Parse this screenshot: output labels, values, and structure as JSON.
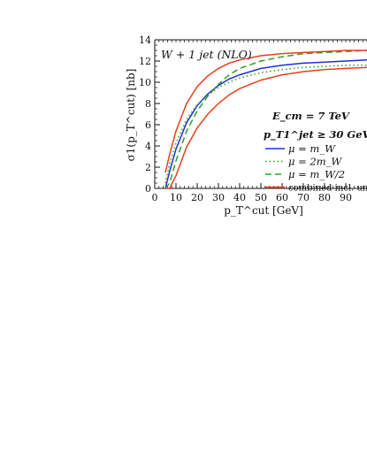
{
  "chart_data": {
    "type": "line",
    "title": "W + 1 jet (NLO)",
    "xlabel": "p_T^cut [GeV]",
    "ylabel": "σ1(p_T^cut) [nb]",
    "xlim": [
      0,
      100
    ],
    "ylim": [
      0,
      14
    ],
    "x_ticks": [
      0,
      10,
      20,
      30,
      40,
      50,
      60,
      70,
      80,
      90
    ],
    "y_ticks": [
      0,
      2,
      4,
      6,
      8,
      10,
      12,
      14
    ],
    "grid": false,
    "legend_position": "right",
    "annotations": [
      "E_cm = 7 TeV",
      "p_T1^jet ≥ 30 GeV"
    ],
    "x": [
      5,
      7,
      10,
      15,
      20,
      25,
      30,
      35,
      40,
      50,
      60,
      70,
      80,
      90,
      100
    ],
    "series": [
      {
        "name": "μ = m_W",
        "color": "#1f2fd8",
        "dash": "solid",
        "values": [
          0.0,
          1.6,
          3.7,
          6.2,
          7.8,
          8.9,
          9.7,
          10.3,
          10.7,
          11.3,
          11.6,
          11.8,
          11.9,
          12.0,
          12.1
        ]
      },
      {
        "name": "μ = 2m_W",
        "color": "#2ca02c",
        "dash": "dotted",
        "values": [
          0.5,
          2.3,
          4.3,
          6.5,
          7.9,
          8.8,
          9.5,
          10.0,
          10.4,
          10.9,
          11.2,
          11.4,
          11.5,
          11.6,
          11.6
        ]
      },
      {
        "name": "μ = m_W/2",
        "color": "#2ca02c",
        "dash": "dashed",
        "values": [
          0.0,
          0.5,
          2.6,
          5.4,
          7.3,
          8.7,
          9.8,
          10.7,
          11.3,
          12.0,
          12.4,
          12.7,
          12.8,
          12.9,
          13.0
        ]
      },
      {
        "name": "combined incl. unc.",
        "color": "#e8401a",
        "dash": "solid",
        "values": [
          1.5,
          3.2,
          5.4,
          8.0,
          9.6,
          10.6,
          11.3,
          11.8,
          12.1,
          12.5,
          12.7,
          12.8,
          12.9,
          13.0,
          13.0
        ]
      },
      {
        "name": "",
        "color": "#e8401a",
        "dash": "solid",
        "values": [
          0.0,
          0.0,
          1.2,
          3.9,
          5.7,
          7.0,
          8.0,
          8.8,
          9.4,
          10.2,
          10.7,
          11.0,
          11.2,
          11.3,
          11.4
        ]
      }
    ]
  }
}
